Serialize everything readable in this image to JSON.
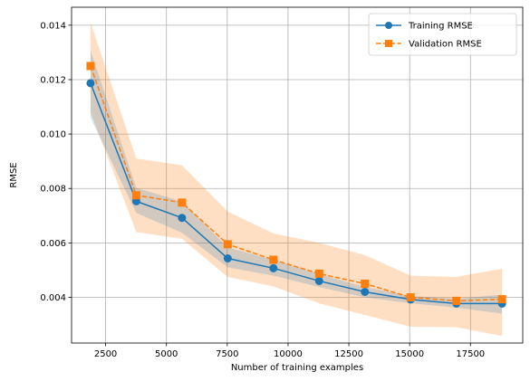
{
  "chart_data": {
    "type": "line",
    "title": "",
    "xlabel": "Number of training examples",
    "ylabel": "RMSE",
    "xlim": [
      1100,
      19650
    ],
    "ylim": [
      0.00232,
      0.01466
    ],
    "x_ticks": [
      2500,
      5000,
      7500,
      10000,
      12500,
      15000,
      17500
    ],
    "x_tick_labels": [
      "2500",
      "5000",
      "7500",
      "10000",
      "12500",
      "15000",
      "17500"
    ],
    "y_ticks": [
      0.004,
      0.006,
      0.008,
      0.01,
      0.012,
      0.014
    ],
    "y_tick_labels": [
      "0.004",
      "0.006",
      "0.008",
      "0.010",
      "0.012",
      "0.014"
    ],
    "grid": true,
    "legend_position": "top-right",
    "x": [
      1880,
      3760,
      5640,
      7520,
      9400,
      11280,
      13160,
      15040,
      16920,
      18800
    ],
    "series": [
      {
        "name": "Training RMSE",
        "color": "#1f77b4",
        "marker": "circle",
        "linestyle": "solid",
        "values": [
          0.01187,
          0.00753,
          0.00692,
          0.00543,
          0.00507,
          0.0046,
          0.0042,
          0.00392,
          0.00377,
          0.00377
        ],
        "band_lower": [
          0.0106,
          0.0071,
          0.00637,
          0.0051,
          0.0048,
          0.00438,
          0.004,
          0.00378,
          0.00362,
          0.0034
        ],
        "band_upper": [
          0.01307,
          0.00802,
          0.00752,
          0.00583,
          0.00538,
          0.00485,
          0.00438,
          0.00405,
          0.00395,
          0.0041
        ]
      },
      {
        "name": "Validation RMSE",
        "color": "#ff7f0e",
        "marker": "square",
        "linestyle": "dashed",
        "values": [
          0.0125,
          0.00775,
          0.00748,
          0.00595,
          0.00538,
          0.00487,
          0.0045,
          0.004,
          0.00387,
          0.00393
        ],
        "band_lower": [
          0.0108,
          0.0064,
          0.00615,
          0.00475,
          0.0044,
          0.00378,
          0.00335,
          0.00292,
          0.0029,
          0.00258
        ],
        "band_upper": [
          0.0141,
          0.0091,
          0.00885,
          0.00715,
          0.00635,
          0.006,
          0.00555,
          0.0048,
          0.00475,
          0.00505
        ]
      }
    ]
  }
}
